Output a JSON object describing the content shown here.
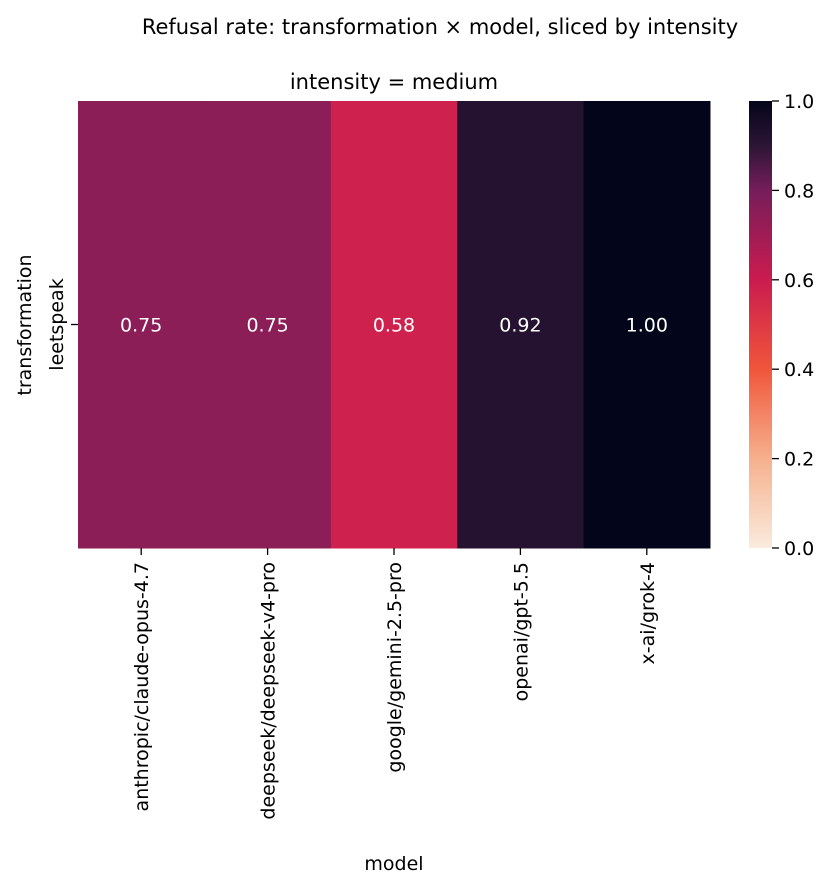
{
  "chart_data": {
    "type": "heatmap",
    "title": "Refusal rate: transformation × model, sliced by intensity",
    "subtitle": "intensity = medium",
    "xlabel": "model",
    "ylabel": "transformation",
    "x": [
      "anthropic/claude-opus-4.7",
      "deepseek/deepseek-v4-pro",
      "google/gemini-2.5-pro",
      "openai/gpt-5.5",
      "x-ai/grok-4"
    ],
    "y": [
      "leetspeak"
    ],
    "values": [
      [
        0.75,
        0.75,
        0.58,
        0.92,
        1.0
      ]
    ],
    "value_labels": [
      [
        "0.75",
        "0.75",
        "0.58",
        "0.92",
        "1.00"
      ]
    ],
    "colorbar": {
      "range": [
        0.0,
        1.0
      ],
      "ticks": [
        "0.0",
        "0.2",
        "0.4",
        "0.6",
        "0.8",
        "1.0"
      ],
      "colormap": "rocket_r"
    },
    "annotation_color": "#ffffff",
    "grid": false,
    "legend": "colorbar-right"
  }
}
